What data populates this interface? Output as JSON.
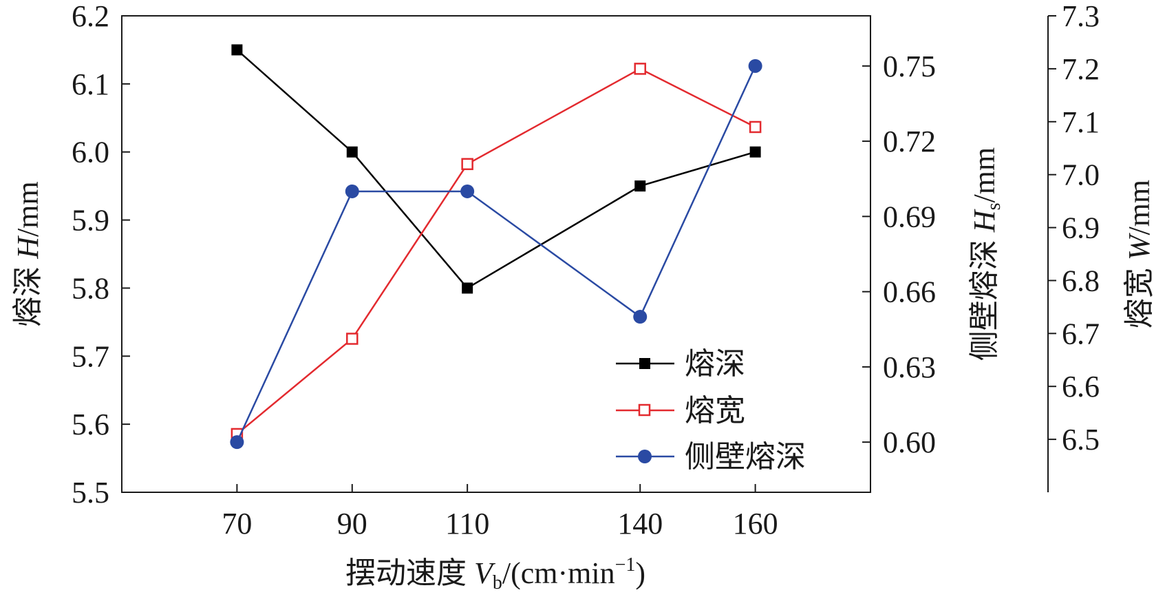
{
  "chart_data": {
    "type": "line",
    "categories": [
      "70",
      "90",
      "110",
      "140",
      "160"
    ],
    "x": [
      70,
      90,
      110,
      140,
      160
    ],
    "xlabel": {
      "prefix": "摆动速度 ",
      "var": "V",
      "sub": "b",
      "unit_pre": "/(cm·min",
      "sup": "−1",
      "unit_post": ")"
    },
    "y_left": {
      "label": {
        "prefix": "熔深 ",
        "var": "H",
        "sub": "",
        "unit": "/mm"
      },
      "ylim": [
        5.5,
        6.2
      ],
      "ticks": [
        "5.5",
        "5.6",
        "5.7",
        "5.8",
        "5.9",
        "6.0",
        "6.1",
        "6.2"
      ]
    },
    "y_right1": {
      "label": {
        "prefix": "侧壁熔深 ",
        "var": "H",
        "sub": "s",
        "unit": "/mm"
      },
      "ylim": [
        0.58,
        0.77
      ],
      "ticks": [
        "0.60",
        "0.63",
        "0.66",
        "0.69",
        "0.72",
        "0.75"
      ]
    },
    "y_right2": {
      "label": {
        "prefix": "熔宽 ",
        "var": "W",
        "sub": "",
        "unit": "/mm"
      },
      "ylim": [
        6.4,
        7.3
      ],
      "ticks": [
        "6.5",
        "6.6",
        "6.7",
        "6.8",
        "6.9",
        "7.0",
        "7.1",
        "7.2",
        "7.3"
      ]
    },
    "series": [
      {
        "name": "熔深",
        "axis": "y_left",
        "color": "#000000",
        "marker": "square-filled",
        "values": [
          6.15,
          6.0,
          5.8,
          5.95,
          6.0
        ]
      },
      {
        "name": "熔宽",
        "axis": "y_right2",
        "color": "#e32a2f",
        "marker": "square-open",
        "values": [
          6.51,
          6.69,
          7.02,
          7.2,
          7.09
        ]
      },
      {
        "name": "侧壁熔深",
        "axis": "y_right1",
        "color": "#2a4aa3",
        "marker": "circle-filled",
        "values": [
          0.6,
          0.7,
          0.7,
          0.65,
          0.75
        ]
      }
    ],
    "legend": {
      "position": "bottom-right"
    },
    "grid": false
  }
}
